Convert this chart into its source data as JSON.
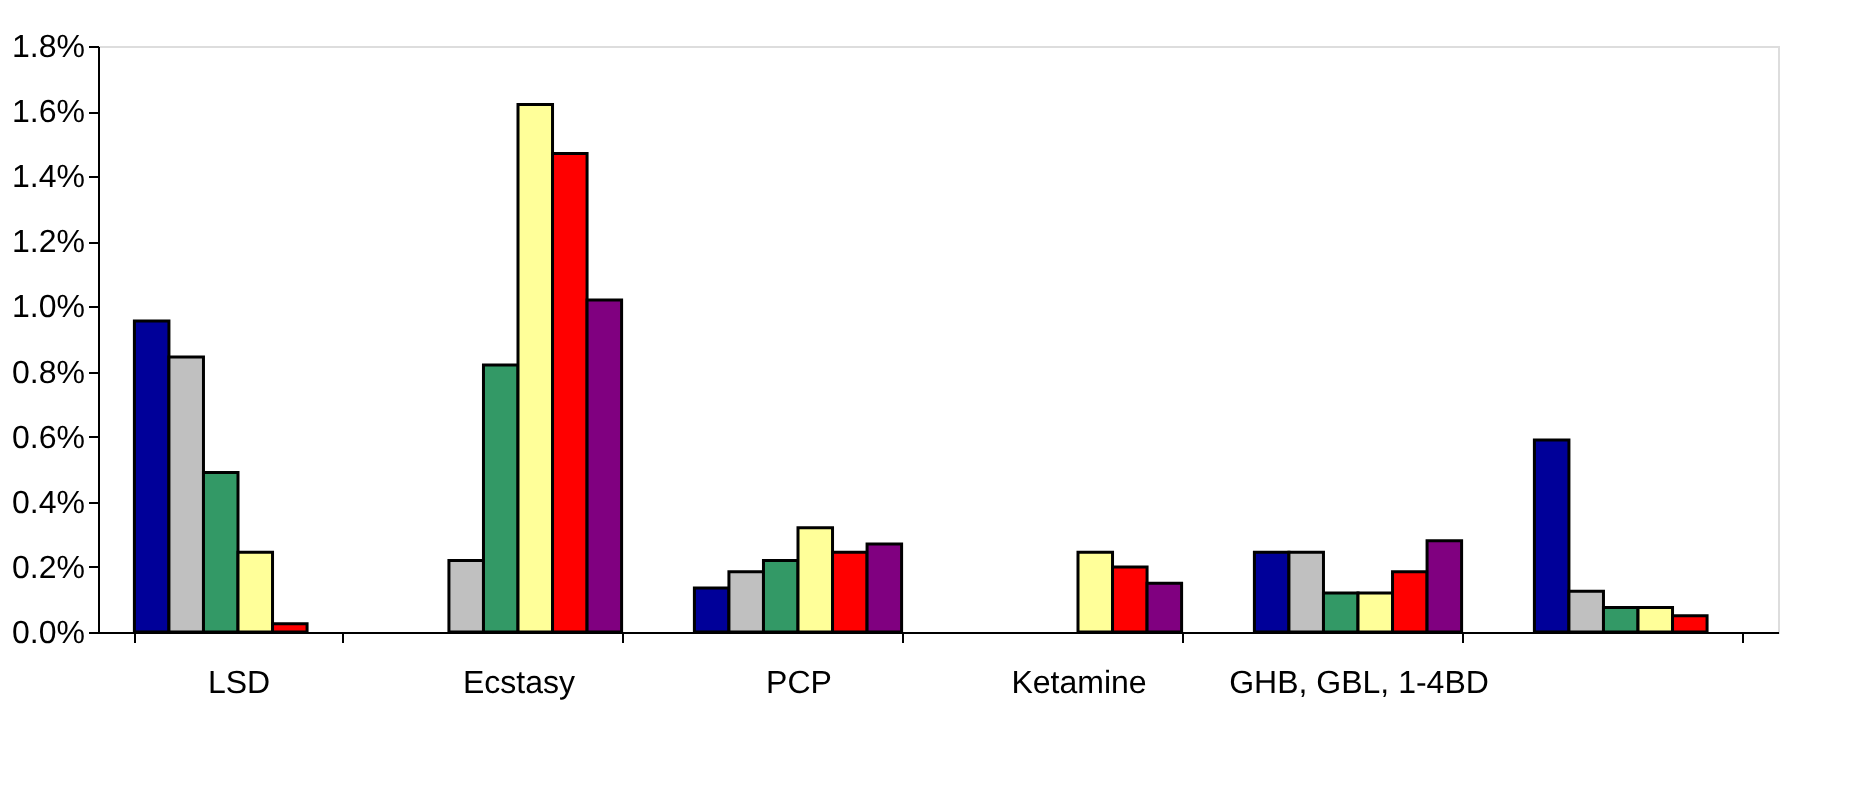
{
  "chart_data": {
    "type": "bar",
    "categories": [
      "LSD",
      "Ecstasy",
      "PCP",
      "Ketamine",
      "GHB, GBL, 1-4BD",
      null
    ],
    "series": [
      {
        "color": "#000099",
        "values": [
          0.955,
          null,
          0.135,
          null,
          0.245,
          0.59
        ]
      },
      {
        "color": "#c0c0c0",
        "values": [
          0.845,
          0.22,
          0.185,
          null,
          0.245,
          0.125
        ]
      },
      {
        "color": "#339966",
        "values": [
          0.49,
          0.82,
          0.22,
          null,
          0.12,
          0.075
        ]
      },
      {
        "color": "#ffff99",
        "values": [
          0.245,
          1.62,
          0.32,
          0.245,
          0.12,
          0.075
        ]
      },
      {
        "color": "#ff0000",
        "values": [
          0.025,
          1.47,
          0.245,
          0.2,
          0.185,
          0.05
        ]
      },
      {
        "color": "#800080",
        "values": [
          null,
          1.02,
          0.27,
          0.15,
          0.28,
          null
        ]
      }
    ],
    "ylim": [
      0,
      1.8
    ],
    "yticks": [
      {
        "value": 0,
        "label": "0.0%"
      },
      {
        "value": 0.2,
        "label": "0.2%"
      },
      {
        "value": 0.4,
        "label": "0.4%"
      },
      {
        "value": 0.6,
        "label": "0.6%"
      },
      {
        "value": 0.8,
        "label": "0.8%"
      },
      {
        "value": 1.0,
        "label": "1.0%"
      },
      {
        "value": 1.2,
        "label": "1.2%"
      },
      {
        "value": 1.4,
        "label": "1.4%"
      },
      {
        "value": 1.6,
        "label": "1.6%"
      },
      {
        "value": 1.8,
        "label": "1.8%"
      }
    ],
    "grid": false,
    "legend": false
  }
}
